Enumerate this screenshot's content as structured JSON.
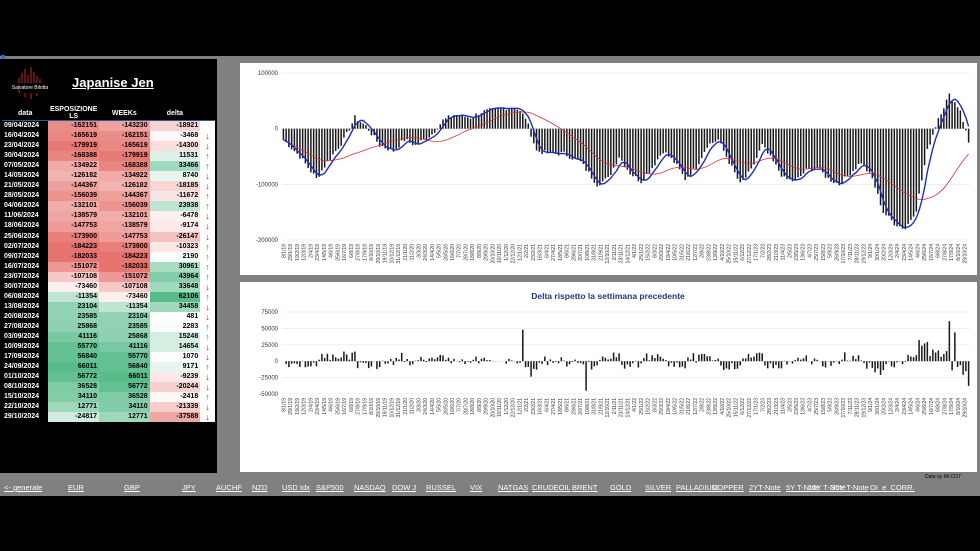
{
  "title": "Japanise Jen",
  "logo_text": "Salvatore Bilotta",
  "table": {
    "headers": [
      "data",
      "ESPOSIZIONE LS",
      "WEEKs",
      "delta"
    ],
    "rows": [
      [
        "09/04/2024",
        "-162151",
        "-143230",
        "-18921",
        ""
      ],
      [
        "16/04/2024",
        "-165619",
        "-162151",
        "-3468",
        "down"
      ],
      [
        "23/04/2024",
        "-179919",
        "-165619",
        "-14300",
        "down"
      ],
      [
        "30/04/2024",
        "-168388",
        "-179919",
        "11531",
        "up"
      ],
      [
        "07/05/2024",
        "-134922",
        "-168388",
        "33466",
        "up"
      ],
      [
        "14/05/2024",
        "-126182",
        "-134922",
        "8740",
        "down"
      ],
      [
        "21/05/2024",
        "-144367",
        "-126182",
        "-18185",
        "down"
      ],
      [
        "28/05/2024",
        "-156039",
        "-144367",
        "-11672",
        "up"
      ],
      [
        "04/06/2024",
        "-132101",
        "-156039",
        "23938",
        "up"
      ],
      [
        "11/06/2024",
        "-138579",
        "-132101",
        "-6478",
        "down"
      ],
      [
        "18/06/2024",
        "-147753",
        "-138579",
        "-9174",
        "down"
      ],
      [
        "25/06/2024",
        "-173900",
        "-147753",
        "-26147",
        "down"
      ],
      [
        "02/07/2024",
        "-184223",
        "-173900",
        "-10323",
        "up"
      ],
      [
        "09/07/2024",
        "-182033",
        "-184223",
        "2190",
        "up"
      ],
      [
        "16/07/2024",
        "-151072",
        "-182033",
        "30961",
        "up"
      ],
      [
        "23/07/2024",
        "-107108",
        "-151072",
        "43964",
        "up"
      ],
      [
        "30/07/2024",
        "-73460",
        "-107108",
        "33648",
        "down"
      ],
      [
        "06/08/2024",
        "-11354",
        "-73460",
        "62106",
        "up"
      ],
      [
        "13/08/2024",
        "23104",
        "-11354",
        "34458",
        "down"
      ],
      [
        "20/08/2024",
        "23585",
        "23104",
        "481",
        "down"
      ],
      [
        "27/08/2024",
        "25868",
        "23585",
        "2283",
        "up"
      ],
      [
        "03/09/2024",
        "41116",
        "25868",
        "15248",
        "up"
      ],
      [
        "10/09/2024",
        "55770",
        "41116",
        "14654",
        "down"
      ],
      [
        "17/09/2024",
        "56840",
        "55770",
        "1070",
        "down"
      ],
      [
        "24/09/2024",
        "66011",
        "56840",
        "9171",
        "up"
      ],
      [
        "01/10/2024",
        "56772",
        "66011",
        "-9239",
        "down"
      ],
      [
        "08/10/2024",
        "36528",
        "56772",
        "-20244",
        "down"
      ],
      [
        "15/10/2024",
        "34110",
        "36528",
        "-2418",
        "up"
      ],
      [
        "22/10/2024",
        "12771",
        "34110",
        "-21339",
        "down"
      ],
      [
        "29/10/2024",
        "-24817",
        "12771",
        "-37588",
        "down"
      ]
    ]
  },
  "nav": [
    "<- generale",
    "EUR",
    "GBP",
    "JPY",
    "AUCHF",
    "NZD",
    "USD Idx",
    "S&P500",
    "NASDAQ",
    "DOW J",
    "RUSSEL",
    "VIX",
    "NATGAS",
    "CRUDEOIL",
    "BRENT",
    "GOLD",
    "SILVER",
    "PALLADIUM",
    "COPPER",
    "2YT-Note",
    "5Y T-Note",
    "10Y T-Note",
    "30Y T-Note",
    "OI_e_CORR."
  ],
  "credit": "Data by Mr.COT",
  "colors": {
    "bar": "#1a1a1a",
    "ma_fast": "#1f2fbf",
    "ma_slow": "#e03030",
    "title_blue": "#1f3a7a"
  },
  "chart_data": [
    {
      "type": "bar",
      "title": "",
      "ylim": [
        -200000,
        100000
      ],
      "yticks": [
        "100000",
        "0",
        "-100000",
        "-200000"
      ],
      "xtick_labels": [
        "8/1/19",
        "29/1/19",
        "19/2/19",
        "12/3/19",
        "2/4/19",
        "23/4/19",
        "14/5/19",
        "4/6/19",
        "25/6/19",
        "16/7/19",
        "6/8/19",
        "27/8/19",
        "17/9/19",
        "8/10/19",
        "29/10/19",
        "19/11/19",
        "10/12/19",
        "31/12/19",
        "21/1/20",
        "11/2/20",
        "3/3/20",
        "24/3/20",
        "14/4/20",
        "5/5/20",
        "26/5/20",
        "16/6/20",
        "7/7/20",
        "28/7/20",
        "18/8/20",
        "8/9/20",
        "29/9/20",
        "20/10/20",
        "10/11/20",
        "1/12/20",
        "22/12/20",
        "12/1/21",
        "2/2/21",
        "23/2/21",
        "16/3/21",
        "6/4/21",
        "27/4/21",
        "18/5/21",
        "8/6/21",
        "29/6/21",
        "20/7/21",
        "10/8/21",
        "31/8/21",
        "21/9/21",
        "12/10/21",
        "2/11/21",
        "23/11/21",
        "14/12/21",
        "4/1/22",
        "25/1/22",
        "15/2/22",
        "8/3/22",
        "29/3/22",
        "19/4/22",
        "10/5/22",
        "31/5/22",
        "21/6/22",
        "12/7/22",
        "2/8/22",
        "23/8/22",
        "13/9/22",
        "4/10/22",
        "25/10/22",
        "15/11/22",
        "6/12/22",
        "27/12/22",
        "17/1/23",
        "7/2/23",
        "28/2/23",
        "21/3/23",
        "11/4/23",
        "2/5/23",
        "23/5/23",
        "13/6/23",
        "4/7/23",
        "25/7/23",
        "15/8/23",
        "5/9/23",
        "26/9/23",
        "17/10/23",
        "7/11/23",
        "28/11/23",
        "19/12/23",
        "9/1/24",
        "30/1/24",
        "20/2/24",
        "12/3/24",
        "2/4/24",
        "23/4/24",
        "14/5/24",
        "4/6/24",
        "25/6/24",
        "16/7/24",
        "6/8/24",
        "27/8/24",
        "17/9/24",
        "8/10/24",
        "29/10/24"
      ],
      "anchors": [
        [
          0,
          -20000
        ],
        [
          6,
          -50000
        ],
        [
          12,
          -90000
        ],
        [
          16,
          -60000
        ],
        [
          22,
          -20000
        ],
        [
          26,
          20000
        ],
        [
          30,
          5000
        ],
        [
          35,
          -30000
        ],
        [
          40,
          -40000
        ],
        [
          44,
          -20000
        ],
        [
          48,
          -30000
        ],
        [
          54,
          -10000
        ],
        [
          58,
          15000
        ],
        [
          62,
          25000
        ],
        [
          68,
          20000
        ],
        [
          72,
          30000
        ],
        [
          78,
          35000
        ],
        [
          84,
          40000
        ],
        [
          88,
          20000
        ],
        [
          92,
          -40000
        ],
        [
          97,
          -45000
        ],
        [
          102,
          -45000
        ],
        [
          108,
          -60000
        ],
        [
          114,
          -100000
        ],
        [
          118,
          -90000
        ],
        [
          122,
          -50000
        ],
        [
          126,
          -80000
        ],
        [
          130,
          -95000
        ],
        [
          134,
          -70000
        ],
        [
          138,
          -40000
        ],
        [
          142,
          -60000
        ],
        [
          146,
          -90000
        ],
        [
          150,
          -70000
        ],
        [
          154,
          -30000
        ],
        [
          158,
          -20000
        ],
        [
          162,
          -60000
        ],
        [
          166,
          -100000
        ],
        [
          170,
          -75000
        ],
        [
          174,
          -30000
        ],
        [
          178,
          -60000
        ],
        [
          182,
          -90000
        ],
        [
          186,
          -95000
        ],
        [
          190,
          -75000
        ],
        [
          194,
          -70000
        ],
        [
          198,
          -90000
        ],
        [
          202,
          -100000
        ],
        [
          206,
          -80000
        ],
        [
          210,
          -60000
        ],
        [
          214,
          -90000
        ],
        [
          218,
          -150000
        ],
        [
          222,
          -170000
        ],
        [
          226,
          -180000
        ],
        [
          230,
          -145000
        ],
        [
          234,
          -40000
        ],
        [
          238,
          20000
        ],
        [
          242,
          60000
        ],
        [
          246,
          34000
        ],
        [
          249,
          -25000
        ]
      ],
      "legend": []
    },
    {
      "type": "bar",
      "title": "Delta rispetto la settimana precedente",
      "ylim": [
        -50000,
        75000
      ],
      "yticks": [
        "75000",
        "50000",
        "25000",
        "0",
        "-25000",
        "-50000"
      ],
      "n_bars": 250
    }
  ]
}
